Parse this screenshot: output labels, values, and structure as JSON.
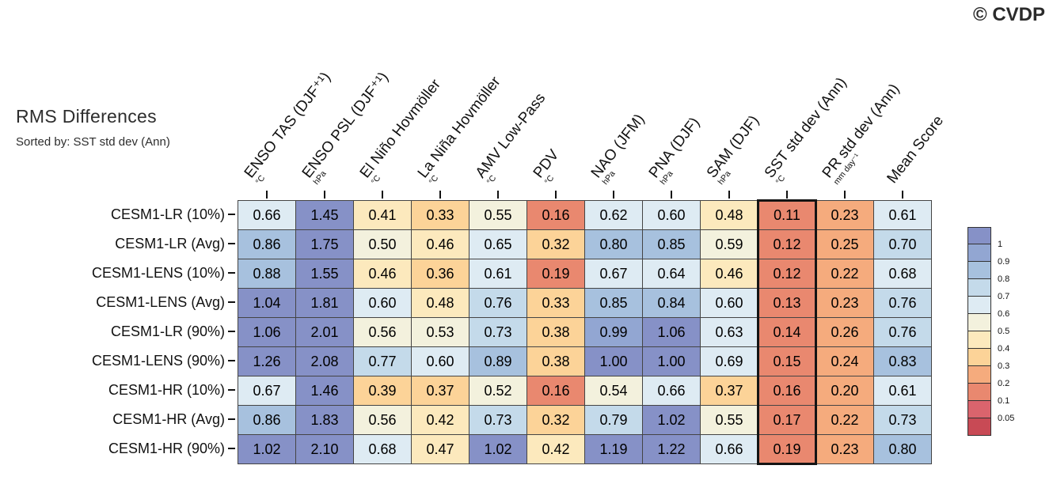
{
  "header": {
    "title": "RMS Differences",
    "subtitle": "Sorted by: SST std dev (Ann)",
    "copyright": "© CVDP"
  },
  "chart_data": {
    "type": "heatmap",
    "title": "RMS Differences",
    "subtitle": "Sorted by: SST std dev (Ann)",
    "columns": [
      {
        "label": "ENSO TAS (DJF⁺¹)",
        "unit": "°C"
      },
      {
        "label": "ENSO PSL (DJF⁺¹)",
        "unit": "hPa"
      },
      {
        "label": "El Niño Hovmöller",
        "unit": "°C"
      },
      {
        "label": "La Niña Hovmöller",
        "unit": "°C"
      },
      {
        "label": "AMV Low-Pass",
        "unit": "°C"
      },
      {
        "label": "PDV",
        "unit": "°C"
      },
      {
        "label": "NAO (JFM)",
        "unit": "hPa"
      },
      {
        "label": "PNA (DJF)",
        "unit": "hPa"
      },
      {
        "label": "SAM (DJF)",
        "unit": "hPa"
      },
      {
        "label": "SST std dev (Ann)",
        "unit": "°C"
      },
      {
        "label": "PR std dev (Ann)",
        "unit": "mm day⁻¹"
      },
      {
        "label": "Mean Score",
        "unit": ""
      }
    ],
    "rows": [
      "CESM1-LR (10%)",
      "CESM1-LR (Avg)",
      "CESM1-LENS (10%)",
      "CESM1-LENS (Avg)",
      "CESM1-LR (90%)",
      "CESM1-LENS (90%)",
      "CESM1-HR (10%)",
      "CESM1-HR (Avg)",
      "CESM1-HR (90%)"
    ],
    "values": [
      [
        0.66,
        1.45,
        0.41,
        0.33,
        0.55,
        0.16,
        0.62,
        0.6,
        0.48,
        0.11,
        0.23,
        0.61
      ],
      [
        0.86,
        1.75,
        0.5,
        0.46,
        0.65,
        0.32,
        0.8,
        0.85,
        0.59,
        0.12,
        0.25,
        0.7
      ],
      [
        0.88,
        1.55,
        0.46,
        0.36,
        0.61,
        0.19,
        0.67,
        0.64,
        0.46,
        0.12,
        0.22,
        0.68
      ],
      [
        1.04,
        1.81,
        0.6,
        0.48,
        0.76,
        0.33,
        0.85,
        0.84,
        0.6,
        0.13,
        0.23,
        0.76
      ],
      [
        1.06,
        2.01,
        0.56,
        0.53,
        0.73,
        0.38,
        0.99,
        1.06,
        0.63,
        0.14,
        0.26,
        0.76
      ],
      [
        1.26,
        2.08,
        0.77,
        0.6,
        0.89,
        0.38,
        1.0,
        1.0,
        0.69,
        0.15,
        0.24,
        0.83
      ],
      [
        0.67,
        1.46,
        0.39,
        0.37,
        0.52,
        0.16,
        0.54,
        0.66,
        0.37,
        0.16,
        0.2,
        0.61
      ],
      [
        0.86,
        1.83,
        0.56,
        0.42,
        0.73,
        0.32,
        0.79,
        1.02,
        0.55,
        0.17,
        0.22,
        0.73
      ],
      [
        1.02,
        2.1,
        0.68,
        0.47,
        1.02,
        0.42,
        1.19,
        1.22,
        0.66,
        0.19,
        0.23,
        0.8
      ]
    ],
    "highlighted_column": "SST std dev (Ann)",
    "highlighted_column_index": 9,
    "value_format": "0.00",
    "legend": {
      "position": "right",
      "tick_labels": [
        "1",
        "0.9",
        "0.8",
        "0.7",
        "0.6",
        "0.5",
        "0.4",
        "0.3",
        "0.2",
        "0.1",
        "0.05"
      ]
    },
    "color_bins": [
      {
        "min": 1.0,
        "color": "#8691c7"
      },
      {
        "min": 0.9,
        "color": "#92a6d2"
      },
      {
        "min": 0.8,
        "color": "#a7c1de"
      },
      {
        "min": 0.7,
        "color": "#c4daea"
      },
      {
        "min": 0.6,
        "color": "#deebf3"
      },
      {
        "min": 0.5,
        "color": "#f3f1dd"
      },
      {
        "min": 0.4,
        "color": "#fce9bd"
      },
      {
        "min": 0.3,
        "color": "#fcd398"
      },
      {
        "min": 0.2,
        "color": "#f5ab7d"
      },
      {
        "min": 0.1,
        "color": "#e9886f"
      },
      {
        "min": 0.05,
        "color": "#da646d"
      },
      {
        "min": 0.0,
        "color": "#c84a55"
      }
    ]
  }
}
